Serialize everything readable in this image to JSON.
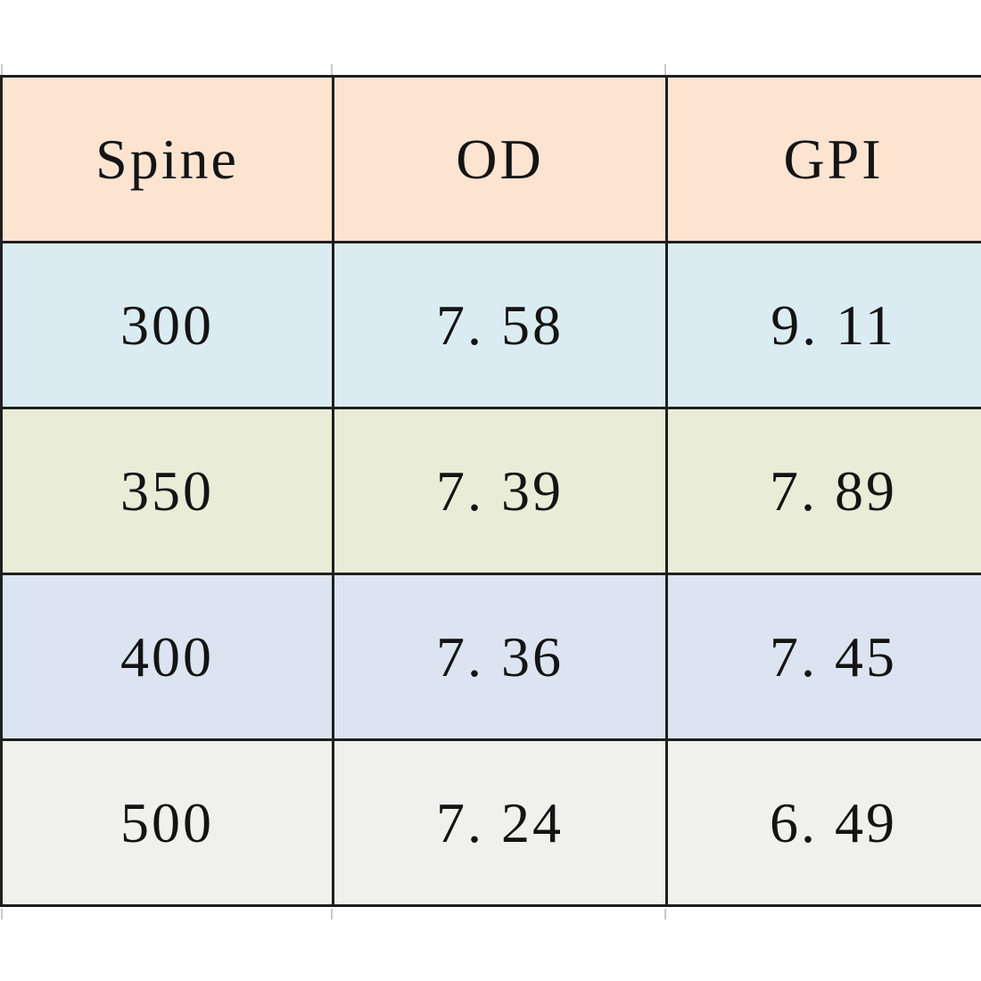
{
  "page": {
    "background": "#ffffff",
    "border_color": "#1f1f1f",
    "tick_color": "#c9c9c9"
  },
  "table": {
    "header": {
      "bg": "#fce4d1",
      "cells": [
        "Spine",
        "OD",
        "GPI"
      ]
    },
    "rows": [
      {
        "bg": "#daecf2",
        "cells": [
          "300",
          "7. 58",
          "9. 11"
        ]
      },
      {
        "bg": "#e9edd8",
        "cells": [
          "350",
          "7. 39",
          "7. 89"
        ]
      },
      {
        "bg": "#dbe4f0",
        "cells": [
          "400",
          "7. 36",
          "7. 45"
        ]
      },
      {
        "bg": "#f0f0ee",
        "cells": [
          "500",
          "7. 24",
          "6. 49"
        ]
      }
    ]
  },
  "chart_data": {
    "type": "table",
    "columns": [
      "Spine",
      "OD",
      "GPI"
    ],
    "rows": [
      [
        300,
        7.58,
        9.11
      ],
      [
        350,
        7.39,
        7.89
      ],
      [
        400,
        7.36,
        7.45
      ],
      [
        500,
        7.24,
        6.49
      ]
    ],
    "title": "",
    "notes": "Arrow spec table; third column clipped at right image edge"
  }
}
